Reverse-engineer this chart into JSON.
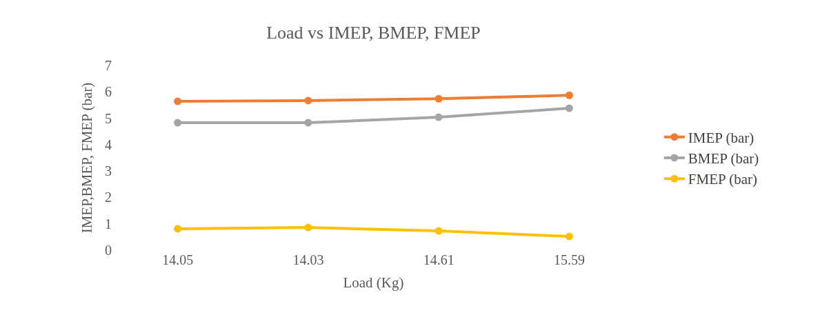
{
  "chart_data": {
    "type": "line",
    "title": "Load vs IMEP, BMEP, FMEP",
    "xlabel": "Load (Kg)",
    "ylabel": "IMEP,BMEP, FMEP (bar)",
    "categories": [
      "14.05",
      "14.03",
      "14.61",
      "15.59"
    ],
    "series": [
      {
        "name": "IMEP (bar)",
        "color": "#ed7d31",
        "values": [
          5.64,
          5.67,
          5.74,
          5.87
        ]
      },
      {
        "name": "BMEP (bar)",
        "color": "#a5a5a5",
        "values": [
          4.83,
          4.83,
          5.04,
          5.38
        ]
      },
      {
        "name": "FMEP (bar)",
        "color": "#ffc000",
        "values": [
          0.81,
          0.86,
          0.73,
          0.52
        ]
      }
    ],
    "ylim": [
      0,
      7
    ],
    "yticks": [
      0,
      1,
      2,
      3,
      4,
      5,
      6,
      7
    ],
    "legend": "right",
    "marker": "circle",
    "line_style": "solid"
  }
}
